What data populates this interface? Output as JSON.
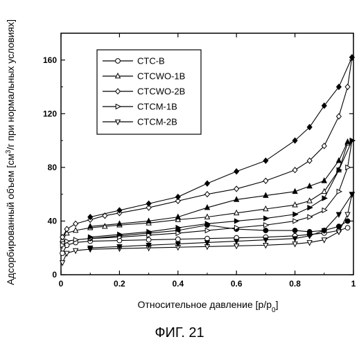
{
  "caption": "ФИГ. 21",
  "chart_data": {
    "type": "scatter",
    "xlabel": "Относительное давление [p/p",
    "xlabel_sub": "0",
    "xlabel_end": "]",
    "ylabel_pre": "Адсорбированный объем [см",
    "ylabel_sup": "3",
    "ylabel_post": "/г при нормальных условиях]",
    "xlim": [
      0,
      1.0
    ],
    "ylim": [
      0,
      180
    ],
    "xticks": [
      0,
      0.2,
      0.4,
      0.6,
      0.8,
      1.0
    ],
    "xtick_labels": [
      "0",
      "0.2",
      "0.4",
      "0.6",
      "0.8",
      "1"
    ],
    "yticks": [
      0,
      40,
      80,
      120,
      160
    ],
    "ytick_labels": [
      "0",
      "40",
      "80",
      "120",
      "160"
    ],
    "grid": false,
    "legend_position": "top-left",
    "series": [
      {
        "name": "CTC-B",
        "marker": "circle",
        "adsorption": [
          [
            0.005,
            16
          ],
          [
            0.02,
            22
          ],
          [
            0.05,
            24
          ],
          [
            0.1,
            25
          ],
          [
            0.2,
            25.5
          ],
          [
            0.3,
            26
          ],
          [
            0.4,
            26.5
          ],
          [
            0.5,
            27
          ],
          [
            0.6,
            27.5
          ],
          [
            0.7,
            28
          ],
          [
            0.8,
            29
          ],
          [
            0.85,
            30
          ],
          [
            0.9,
            31
          ],
          [
            0.95,
            33
          ],
          [
            0.98,
            35
          ]
        ],
        "desorption": [
          [
            0.98,
            40
          ],
          [
            0.95,
            36
          ],
          [
            0.9,
            33
          ],
          [
            0.85,
            32
          ],
          [
            0.8,
            33
          ],
          [
            0.7,
            33
          ],
          [
            0.6,
            34
          ],
          [
            0.5,
            37
          ],
          [
            0.4,
            33
          ],
          [
            0.3,
            31
          ],
          [
            0.2,
            29
          ],
          [
            0.1,
            27
          ]
        ]
      },
      {
        "name": "CTCWO-1B",
        "marker": "triangle-up",
        "adsorption": [
          [
            0.005,
            26
          ],
          [
            0.02,
            31
          ],
          [
            0.05,
            33
          ],
          [
            0.1,
            35
          ],
          [
            0.15,
            36
          ],
          [
            0.2,
            37
          ],
          [
            0.3,
            38.5
          ],
          [
            0.4,
            41
          ],
          [
            0.5,
            43
          ],
          [
            0.6,
            46
          ],
          [
            0.7,
            49
          ],
          [
            0.8,
            52
          ],
          [
            0.85,
            55
          ],
          [
            0.9,
            62
          ],
          [
            0.95,
            78
          ],
          [
            0.98,
            98
          ]
        ],
        "desorption": [
          [
            0.98,
            99
          ],
          [
            0.95,
            85
          ],
          [
            0.9,
            70
          ],
          [
            0.85,
            66
          ],
          [
            0.8,
            62
          ],
          [
            0.7,
            59
          ],
          [
            0.6,
            56
          ],
          [
            0.5,
            50
          ],
          [
            0.4,
            43
          ],
          [
            0.3,
            40
          ],
          [
            0.2,
            38
          ],
          [
            0.1,
            36
          ]
        ]
      },
      {
        "name": "CTCWO-2B",
        "marker": "diamond",
        "adsorption": [
          [
            0.005,
            28
          ],
          [
            0.02,
            34
          ],
          [
            0.05,
            38
          ],
          [
            0.1,
            41
          ],
          [
            0.15,
            44
          ],
          [
            0.2,
            46
          ],
          [
            0.3,
            50
          ],
          [
            0.4,
            55
          ],
          [
            0.5,
            60
          ],
          [
            0.6,
            64
          ],
          [
            0.7,
            70
          ],
          [
            0.8,
            78
          ],
          [
            0.85,
            85
          ],
          [
            0.9,
            96
          ],
          [
            0.95,
            118
          ],
          [
            0.98,
            140
          ],
          [
            0.995,
            162
          ]
        ],
        "desorption": [
          [
            0.995,
            162
          ],
          [
            0.95,
            140
          ],
          [
            0.9,
            126
          ],
          [
            0.85,
            110
          ],
          [
            0.8,
            100
          ],
          [
            0.7,
            85
          ],
          [
            0.6,
            77
          ],
          [
            0.5,
            68
          ],
          [
            0.4,
            58
          ],
          [
            0.3,
            53
          ],
          [
            0.2,
            48
          ],
          [
            0.1,
            43
          ]
        ]
      },
      {
        "name": "CTCM-1B",
        "marker": "triangle-right",
        "adsorption": [
          [
            0.005,
            22
          ],
          [
            0.02,
            25
          ],
          [
            0.05,
            26
          ],
          [
            0.1,
            27
          ],
          [
            0.2,
            28
          ],
          [
            0.3,
            29.5
          ],
          [
            0.4,
            31
          ],
          [
            0.5,
            33
          ],
          [
            0.6,
            35
          ],
          [
            0.7,
            37
          ],
          [
            0.8,
            40
          ],
          [
            0.85,
            43
          ],
          [
            0.9,
            48
          ],
          [
            0.95,
            62
          ],
          [
            0.98,
            80
          ],
          [
            0.995,
            100
          ]
        ],
        "desorption": [
          [
            0.995,
            100
          ],
          [
            0.95,
            78
          ],
          [
            0.9,
            57
          ],
          [
            0.85,
            50
          ],
          [
            0.8,
            45
          ],
          [
            0.7,
            42
          ],
          [
            0.6,
            40
          ],
          [
            0.5,
            38
          ],
          [
            0.4,
            35
          ],
          [
            0.3,
            32
          ],
          [
            0.2,
            30
          ],
          [
            0.1,
            28
          ]
        ]
      },
      {
        "name": "CTCM-2B",
        "marker": "triangle-down",
        "adsorption": [
          [
            0.005,
            9
          ],
          [
            0.02,
            16
          ],
          [
            0.05,
            18
          ],
          [
            0.1,
            19
          ],
          [
            0.2,
            19.5
          ],
          [
            0.3,
            20
          ],
          [
            0.4,
            20.5
          ],
          [
            0.5,
            21
          ],
          [
            0.6,
            21.5
          ],
          [
            0.7,
            22
          ],
          [
            0.8,
            23
          ],
          [
            0.85,
            24
          ],
          [
            0.9,
            26
          ],
          [
            0.95,
            32
          ],
          [
            0.98,
            45
          ],
          [
            0.995,
            60
          ]
        ],
        "desorption": [
          [
            0.995,
            60
          ],
          [
            0.95,
            45
          ],
          [
            0.9,
            33
          ],
          [
            0.85,
            29
          ],
          [
            0.8,
            27
          ],
          [
            0.7,
            26
          ],
          [
            0.6,
            25
          ],
          [
            0.5,
            24
          ],
          [
            0.4,
            23
          ],
          [
            0.3,
            22
          ],
          [
            0.2,
            21
          ],
          [
            0.1,
            20
          ]
        ]
      }
    ]
  }
}
